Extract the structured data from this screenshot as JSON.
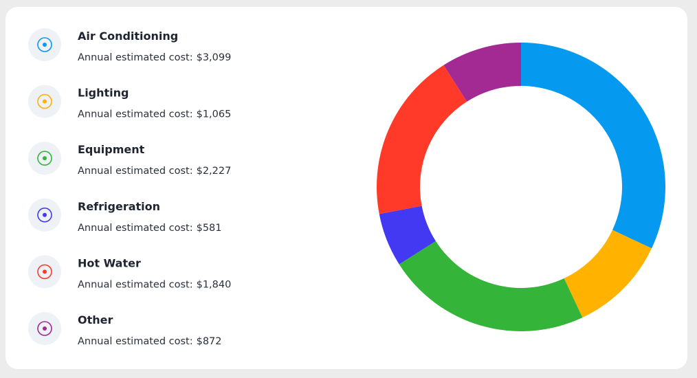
{
  "chart_data": {
    "type": "pie",
    "donut": true,
    "caption": "Annual estimated cost:",
    "series": [
      {
        "name": "Air Conditioning",
        "color": "#0599ef",
        "values": [
          3099
        ],
        "value_labels": [
          "$3,099"
        ]
      },
      {
        "name": "Lighting",
        "color": "#ffb200",
        "values": [
          1065
        ],
        "value_labels": [
          "$1,065"
        ]
      },
      {
        "name": "Equipment",
        "color": "#34b53a",
        "values": [
          2227
        ],
        "value_labels": [
          "$2,227"
        ]
      },
      {
        "name": "Refrigeration",
        "color": "#4339f2",
        "values": [
          581
        ],
        "value_labels": [
          "$581"
        ]
      },
      {
        "name": "Hot Water",
        "color": "#ff3a29",
        "values": [
          1840
        ],
        "value_labels": [
          "$1,840"
        ]
      },
      {
        "name": "Other",
        "color": "#a22a92",
        "values": [
          872
        ],
        "value_labels": [
          "$872"
        ]
      }
    ]
  }
}
